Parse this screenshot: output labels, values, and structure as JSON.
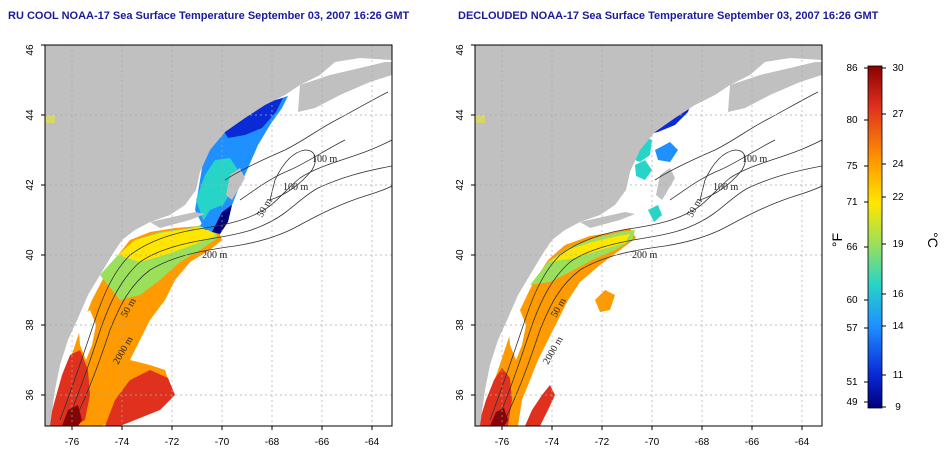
{
  "titles": {
    "left": "RU COOL NOAA-17 Sea Surface Temperature September 03, 2007 16:26 GMT",
    "right": "DECLOUDED NOAA-17 Sea Surface Temperature September 03, 2007 16:26 GMT"
  },
  "axes": {
    "lon_ticks": [
      "-76",
      "-74",
      "-72",
      "-70",
      "-68",
      "-66",
      "-64"
    ],
    "lat_ticks": [
      "36",
      "38",
      "40",
      "42",
      "44",
      "46"
    ]
  },
  "contour_labels": {
    "left": [
      "100 m",
      "100 m",
      "50 m",
      "200 m",
      "50 m",
      "2000 m"
    ],
    "right": [
      "100 m",
      "100 m",
      "50 m",
      "200 m",
      "50 m",
      "2000 m"
    ]
  },
  "colorbar": {
    "fahrenheit_ticks": [
      "86",
      "80",
      "75",
      "71",
      "66",
      "60",
      "57",
      "51",
      "49"
    ],
    "celsius_ticks": [
      "30",
      "27",
      "24",
      "22",
      "19",
      "16",
      "14",
      "11",
      "9"
    ],
    "unit_f": "°F",
    "unit_c": "°C",
    "colors": [
      "#8b0000",
      "#e0301e",
      "#ff9a00",
      "#ffe600",
      "#9be05a",
      "#26d4c8",
      "#1e90ff",
      "#0a2ad8",
      "#00007a"
    ]
  },
  "colors": {
    "land": "#c0c0c0",
    "ocean": "#ffffff",
    "title": "#1a1a9c"
  }
}
